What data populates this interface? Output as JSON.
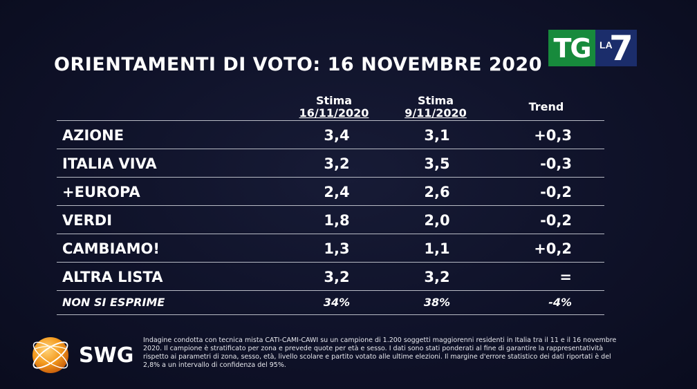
{
  "title": "ORIENTAMENTI DI VOTO: 16 NOVEMBRE 2020",
  "broadcaster": {
    "tg": "TG",
    "la": "LA",
    "seven": "7"
  },
  "columns": {
    "col1_top": "Stima",
    "col1_date": "16/11/2020",
    "col2_top": "Stima",
    "col2_date": "9/11/2020",
    "col3": "Trend"
  },
  "rows": [
    {
      "name": "AZIONE",
      "v1": "3,4",
      "v2": "3,1",
      "trend": "+0,3"
    },
    {
      "name": "ITALIA VIVA",
      "v1": "3,2",
      "v2": "3,5",
      "trend": "-0,3"
    },
    {
      "name": "+EUROPA",
      "v1": "2,4",
      "v2": "2,6",
      "trend": "-0,2"
    },
    {
      "name": "VERDI",
      "v1": "1,8",
      "v2": "2,0",
      "trend": "-0,2"
    },
    {
      "name": "CAMBIAMO!",
      "v1": "1,3",
      "v2": "1,1",
      "trend": "+0,2"
    },
    {
      "name": "ALTRA LISTA",
      "v1": "3,2",
      "v2": "3,2",
      "trend": "="
    },
    {
      "name": "NON SI ESPRIME",
      "v1": "34%",
      "v2": "38%",
      "trend": "-4%"
    }
  ],
  "footer": {
    "brand": "SWG",
    "note": "Indagine condotta con tecnica mista CATI-CAMI-CAWI su un campione di 1.200 soggetti maggiorenni residenti in Italia tra il 11 e il 16 novembre 2020. Il campione è stratificato per zona e prevede quote per età e sesso. I dati sono stati ponderati al fine di garantire la rappresentatività rispetto ai parametri di zona, sesso, età, livello scolare e partito votato alle ultime elezioni. Il margine d'errore statistico dei dati riportati è del 2,8% a un intervallo di confidenza del 95%."
  },
  "colors": {
    "tg_green": "#178a3c",
    "la7_blue": "#1b2d6b",
    "swg_orange": "#f39a1e"
  }
}
